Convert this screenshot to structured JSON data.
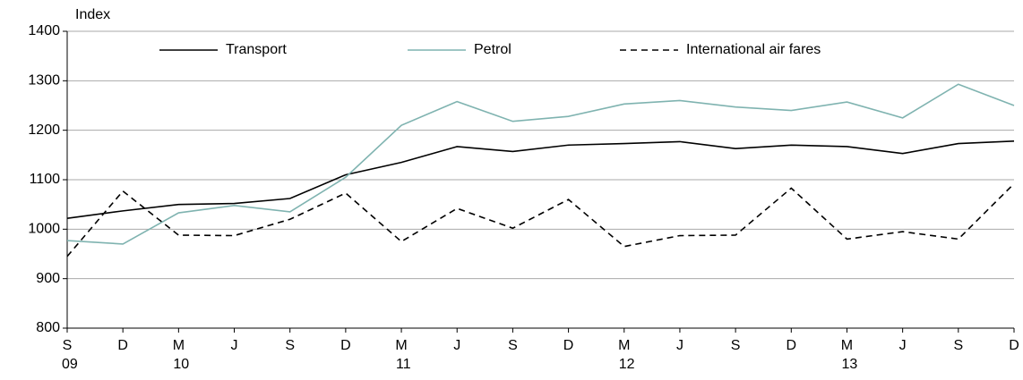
{
  "chart_data": {
    "type": "line",
    "y_axis_label": "Index",
    "categories": [
      "S",
      "D",
      "M",
      "J",
      "S",
      "D",
      "M",
      "J",
      "S",
      "D",
      "M",
      "J",
      "S",
      "D",
      "M",
      "J",
      "S",
      "D"
    ],
    "category_years": [
      "09",
      null,
      "10",
      null,
      null,
      null,
      "11",
      null,
      null,
      null,
      "12",
      null,
      null,
      null,
      "13",
      null,
      null,
      null
    ],
    "ylim": [
      800,
      1400
    ],
    "yticks": [
      800,
      900,
      1000,
      1100,
      1200,
      1300,
      1400
    ],
    "grid": true,
    "series": [
      {
        "name": "Transport",
        "color": "#000000",
        "dash": "solid",
        "values": [
          1022,
          1037,
          1050,
          1052,
          1062,
          1110,
          1135,
          1167,
          1157,
          1170,
          1173,
          1177,
          1163,
          1170,
          1167,
          1153,
          1173,
          1178
        ]
      },
      {
        "name": "Petrol",
        "color": "#7fb3b0",
        "dash": "solid",
        "values": [
          977,
          970,
          1033,
          1048,
          1035,
          1105,
          1210,
          1258,
          1218,
          1228,
          1253,
          1260,
          1247,
          1240,
          1257,
          1225,
          1293,
          1250
        ]
      },
      {
        "name": "International air fares",
        "color": "#000000",
        "dash": "dashed",
        "values": [
          945,
          1077,
          988,
          987,
          1020,
          1073,
          975,
          1042,
          1002,
          1060,
          965,
          987,
          988,
          1083,
          980,
          995,
          980,
          1092
        ]
      }
    ]
  }
}
